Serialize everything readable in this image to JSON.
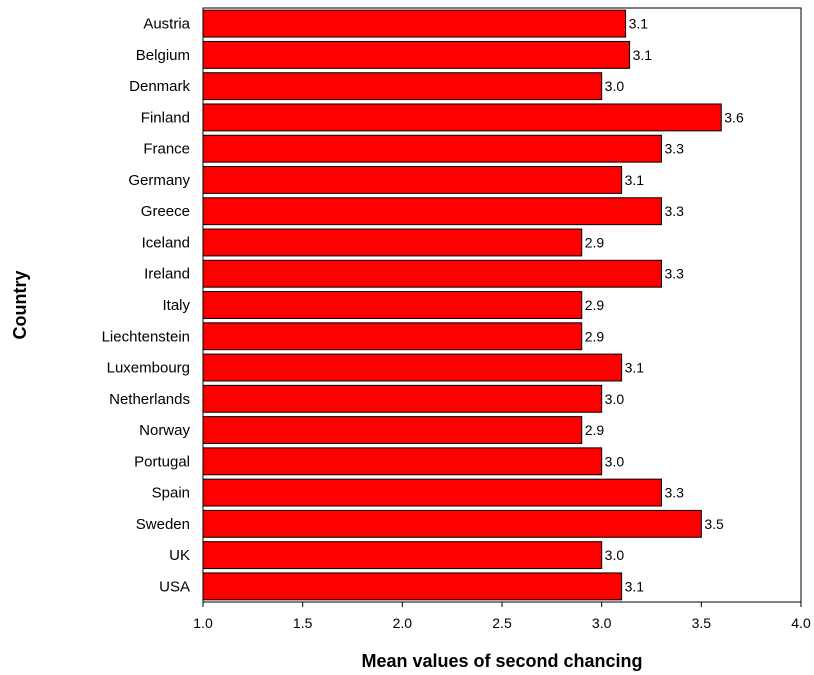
{
  "chart_data": {
    "type": "bar",
    "orientation": "horizontal",
    "title": "",
    "xlabel": "Mean values of second chancing",
    "ylabel": "Country",
    "categories": [
      "Austria",
      "Belgium",
      "Denmark",
      "Finland",
      "France",
      "Germany",
      "Greece",
      "Iceland",
      "Ireland",
      "Italy",
      "Liechtenstein",
      "Luxembourg",
      "Netherlands",
      "Norway",
      "Portugal",
      "Spain",
      "Sweden",
      "UK",
      "USA"
    ],
    "values": [
      3.12,
      3.14,
      3.0,
      3.6,
      3.3,
      3.1,
      3.3,
      2.9,
      3.3,
      2.9,
      2.9,
      3.1,
      3.0,
      2.9,
      3.0,
      3.3,
      3.5,
      3.0,
      3.1
    ],
    "value_labels": [
      "3.1",
      "3.1",
      "3.0",
      "3.6",
      "3.3",
      "3.1",
      "3.3",
      "2.9",
      "3.3",
      "2.9",
      "2.9",
      "3.1",
      "3.0",
      "2.9",
      "3.0",
      "3.3",
      "3.5",
      "3.0",
      "3.1"
    ],
    "xlim": [
      1.0,
      4.0
    ],
    "xticks": [
      "1.0",
      "1.5",
      "2.0",
      "2.5",
      "3.0",
      "3.5",
      "4.0"
    ],
    "grid": false,
    "legend": "none",
    "bar_color": "#ff0000",
    "bar_edge_color": "#000000"
  }
}
